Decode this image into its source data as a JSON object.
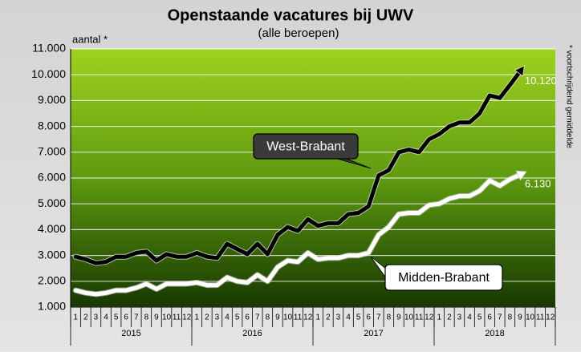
{
  "chart_data": {
    "type": "line",
    "title": "Openstaande vacatures bij UWV",
    "subtitle": "(alle beroepen)",
    "y_label": "aantal *",
    "note": "* voortschrijdend gemiddelde",
    "categories": [
      "1",
      "2",
      "3",
      "4",
      "5",
      "6",
      "7",
      "8",
      "9",
      "10",
      "11",
      "12",
      "1",
      "2",
      "3",
      "4",
      "5",
      "6",
      "7",
      "8",
      "9",
      "10",
      "11",
      "12",
      "1",
      "2",
      "3",
      "4",
      "5",
      "6",
      "7",
      "8",
      "9",
      "10",
      "11",
      "12",
      "1",
      "2",
      "3",
      "4",
      "5",
      "6",
      "7",
      "8",
      "9",
      "10",
      "11",
      "12"
    ],
    "years": [
      "2015",
      "2016",
      "2017",
      "2018"
    ],
    "ylim": [
      1000,
      11000
    ],
    "yticks": [
      {
        "value": 1000,
        "label": "1.000"
      },
      {
        "value": 2000,
        "label": "2.000"
      },
      {
        "value": 3000,
        "label": "3.000"
      },
      {
        "value": 4000,
        "label": "4.000"
      },
      {
        "value": 5000,
        "label": "5.000"
      },
      {
        "value": 6000,
        "label": "6.000"
      },
      {
        "value": 7000,
        "label": "7.000"
      },
      {
        "value": 8000,
        "label": "8.000"
      },
      {
        "value": 9000,
        "label": "9.000"
      },
      {
        "value": 10000,
        "label": "10.000"
      },
      {
        "value": 11000,
        "label": "11.000"
      }
    ],
    "grid": true,
    "series": [
      {
        "name": "West-Brabant",
        "color": "#000000",
        "values": [
          2950,
          2850,
          2700,
          2750,
          2950,
          2950,
          3100,
          3150,
          2800,
          3050,
          2950,
          2950,
          3100,
          2950,
          2900,
          3450,
          3250,
          3050,
          3450,
          3050,
          3800,
          4100,
          3950,
          4400,
          4150,
          4250,
          4250,
          4600,
          4650,
          4900,
          6100,
          6300,
          7000,
          7100,
          7000,
          7500,
          7700,
          8000,
          8150,
          8150,
          8500,
          9200,
          9100,
          9600,
          10120,
          null,
          null,
          null
        ],
        "value_labels": [
          null,
          null,
          null,
          null,
          null,
          null,
          null,
          null,
          null,
          null,
          null,
          null,
          null,
          null,
          null,
          null,
          null,
          null,
          null,
          null,
          null,
          null,
          null,
          null,
          null,
          null,
          null,
          null,
          null,
          null,
          null,
          null,
          null,
          null,
          null,
          null,
          null,
          null,
          null,
          null,
          null,
          null,
          null,
          null,
          "10.120",
          null,
          null,
          null
        ]
      },
      {
        "name": "Midden-Brabant",
        "color": "#ffffff",
        "values": [
          1650,
          1550,
          1500,
          1550,
          1650,
          1650,
          1750,
          1900,
          1700,
          1900,
          1900,
          1900,
          1950,
          1850,
          1850,
          2150,
          2000,
          1950,
          2250,
          2000,
          2550,
          2800,
          2750,
          3100,
          2850,
          2900,
          2900,
          3000,
          3000,
          3100,
          3800,
          4100,
          4600,
          4650,
          4650,
          4950,
          5000,
          5200,
          5300,
          5300,
          5500,
          5900,
          5700,
          5950,
          6130,
          null,
          null,
          null
        ],
        "value_labels": [
          null,
          null,
          null,
          null,
          null,
          null,
          null,
          null,
          null,
          null,
          null,
          null,
          null,
          null,
          null,
          null,
          null,
          null,
          null,
          null,
          null,
          null,
          null,
          null,
          null,
          null,
          null,
          null,
          null,
          null,
          null,
          null,
          null,
          null,
          null,
          null,
          null,
          null,
          null,
          null,
          null,
          null,
          null,
          null,
          "6.130",
          null,
          null,
          null
        ]
      }
    ]
  }
}
